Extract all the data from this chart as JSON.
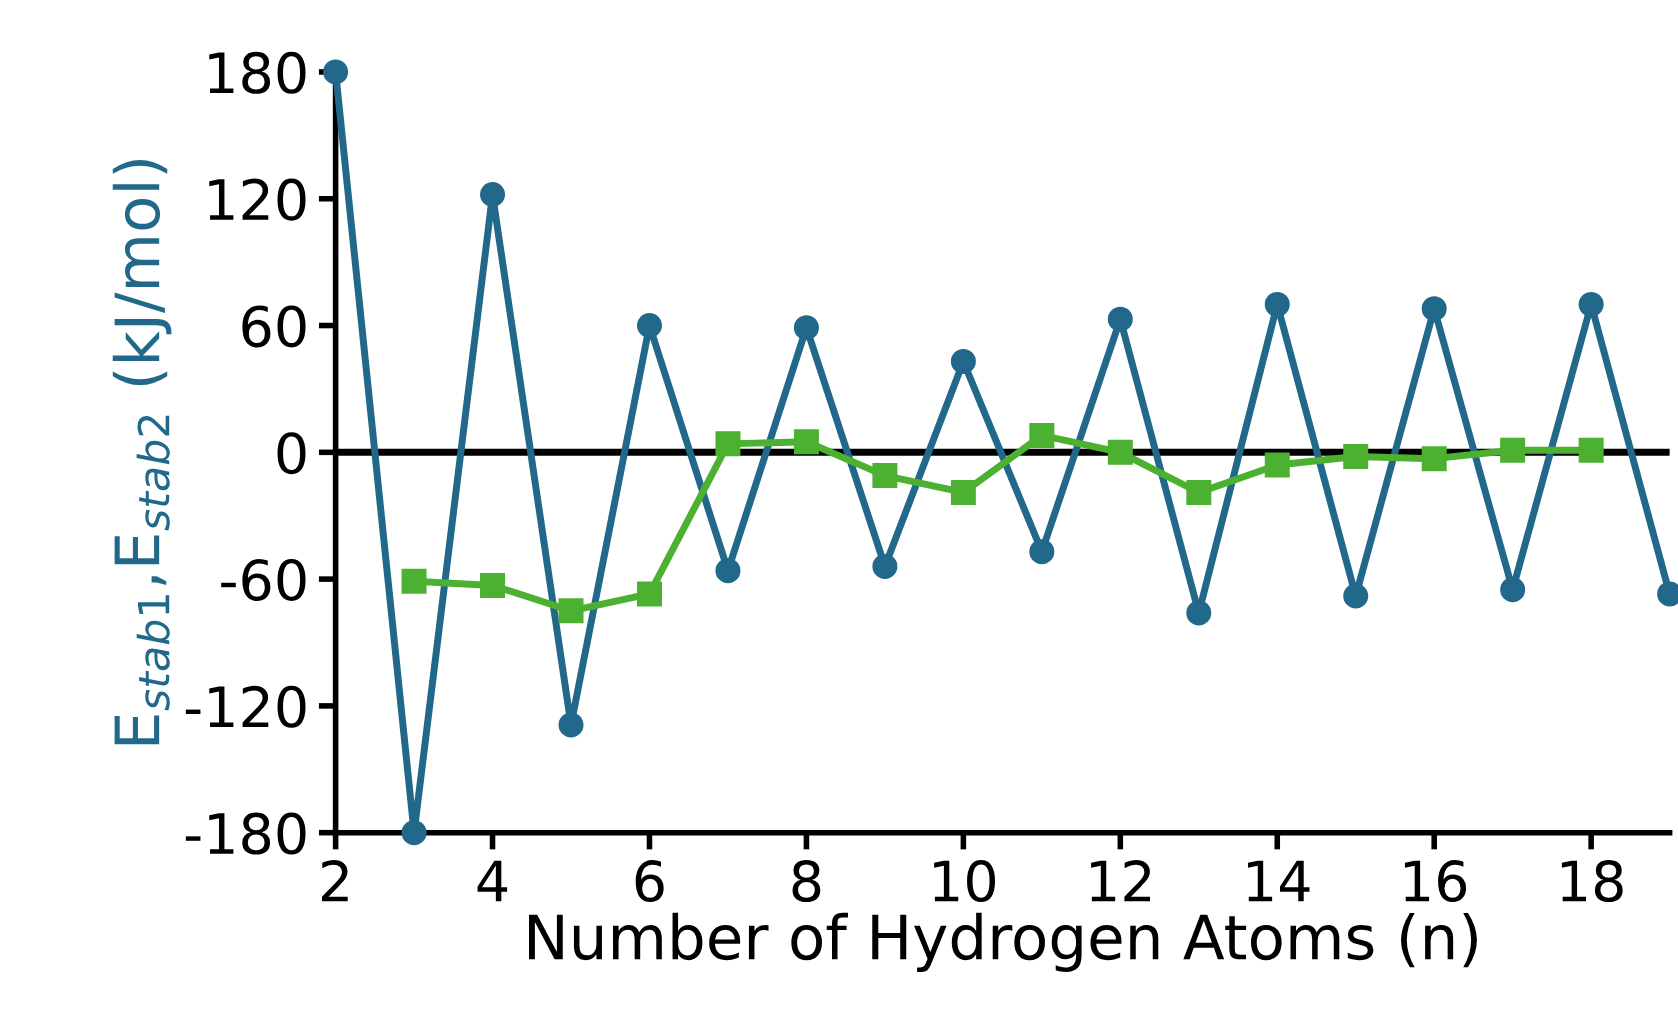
{
  "chart_data": {
    "type": "line",
    "xlabel": "Number of Hydrogen Atoms (n)",
    "ylabel": "E$_{stab1}$,E$_{stab2}$ (kJ/mol)",
    "series": [
      {
        "color": "#21688a",
        "marker": "circle",
        "x": [
          2,
          3,
          4,
          5,
          6,
          7,
          8,
          9,
          10,
          11,
          12,
          13,
          14,
          15,
          16,
          17,
          18,
          19
        ],
        "values": [
          180,
          -180,
          122,
          -129,
          60,
          -56,
          59,
          -54,
          43,
          -47,
          63,
          -76,
          70,
          -68,
          68,
          -65,
          70,
          -67
        ]
      },
      {
        "color": "#4cb030",
        "marker": "square",
        "x": [
          3,
          4,
          5,
          6,
          7,
          8,
          9,
          10,
          11,
          12,
          13,
          14,
          15,
          16,
          17,
          18
        ],
        "values": [
          -61,
          -63,
          -75,
          -67,
          4,
          5,
          -11,
          -19,
          8,
          0,
          -19,
          -6,
          -2,
          -3,
          1,
          1
        ]
      }
    ],
    "xlim": [
      2,
      19
    ],
    "xticks": [
      2,
      4,
      6,
      8,
      10,
      12,
      14,
      16,
      18
    ],
    "ylim": [
      -180,
      180
    ],
    "yticks": [
      -180,
      -120,
      -60,
      0,
      60,
      120,
      180
    ],
    "ref_lines": [
      {
        "axis": "y",
        "value": 0,
        "color": "#000000"
      }
    ],
    "grid": false,
    "legend": false,
    "line_style": "solid"
  }
}
